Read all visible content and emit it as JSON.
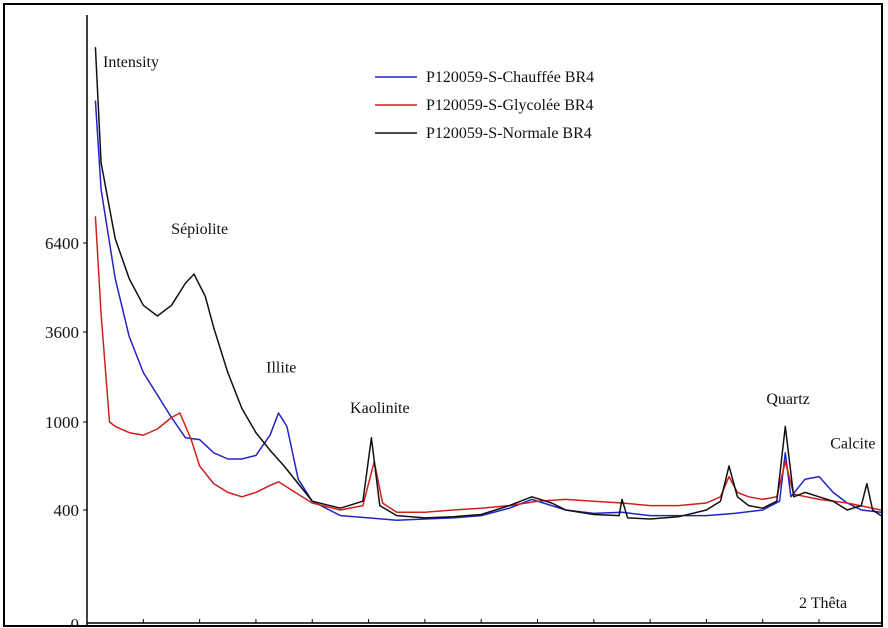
{
  "chart_data": {
    "type": "line",
    "title": "",
    "ylabel": "Intensity",
    "xlabel": "2 Thêta",
    "xlim": [
      2.0,
      30.2
    ],
    "y_tick_labels": [
      "0",
      "400",
      "1000",
      "3600",
      "6400"
    ],
    "x_tick_values": [
      4,
      6,
      8,
      10,
      12,
      14,
      16,
      18,
      20,
      22,
      24,
      26,
      28
    ],
    "grid": false,
    "legend_position": "top-center",
    "annotations": [
      {
        "text": "Sépiolite",
        "x": 6.0,
        "level": 4.1
      },
      {
        "text": "Illite",
        "x": 8.9,
        "level": 2.55
      },
      {
        "text": "Kaolinite",
        "x": 12.4,
        "level": 2.1
      },
      {
        "text": "Quartz",
        "x": 26.9,
        "level": 2.2
      },
      {
        "text": "Calcite",
        "x": 29.2,
        "level": 1.7
      }
    ],
    "series": [
      {
        "name": "P120059-S-Chauffée BR4",
        "color": "#2323c8",
        "points": [
          [
            2.3,
            5.6
          ],
          [
            2.5,
            4.6
          ],
          [
            3,
            3.6
          ],
          [
            3.5,
            2.95
          ],
          [
            4,
            2.55
          ],
          [
            4.5,
            2.3
          ],
          [
            5,
            2.05
          ],
          [
            5.5,
            1.82
          ],
          [
            6,
            1.8
          ],
          [
            6.5,
            1.65
          ],
          [
            7,
            1.58
          ],
          [
            7.5,
            1.58
          ],
          [
            8,
            1.62
          ],
          [
            8.5,
            1.85
          ],
          [
            8.8,
            2.1
          ],
          [
            9.1,
            1.95
          ],
          [
            9.5,
            1.35
          ],
          [
            10,
            1.1
          ],
          [
            11,
            0.95
          ],
          [
            12,
            0.93
          ],
          [
            13,
            0.91
          ],
          [
            14,
            0.92
          ],
          [
            15,
            0.93
          ],
          [
            16,
            0.95
          ],
          [
            17,
            1.02
          ],
          [
            17.8,
            1.12
          ],
          [
            18.5,
            1.05
          ],
          [
            19,
            1.0
          ],
          [
            20,
            0.97
          ],
          [
            21,
            0.98
          ],
          [
            22,
            0.95
          ],
          [
            24,
            0.95
          ],
          [
            25,
            0.97
          ],
          [
            26,
            1.0
          ],
          [
            26.6,
            1.1
          ],
          [
            26.8,
            1.65
          ],
          [
            27.0,
            1.15
          ],
          [
            27.5,
            1.35
          ],
          [
            28,
            1.38
          ],
          [
            28.5,
            1.2
          ],
          [
            29,
            1.08
          ],
          [
            29.5,
            1.0
          ],
          [
            30.2,
            0.98
          ]
        ]
      },
      {
        "name": "P120059-S-Glycolée BR4",
        "color": "#d11f1f",
        "points": [
          [
            2.3,
            4.3
          ],
          [
            2.5,
            3.2
          ],
          [
            2.8,
            2.0
          ],
          [
            3,
            1.95
          ],
          [
            3.5,
            1.88
          ],
          [
            4,
            1.85
          ],
          [
            4.5,
            1.92
          ],
          [
            5,
            2.05
          ],
          [
            5.3,
            2.1
          ],
          [
            5.7,
            1.8
          ],
          [
            6,
            1.5
          ],
          [
            6.5,
            1.3
          ],
          [
            7,
            1.2
          ],
          [
            7.5,
            1.15
          ],
          [
            8,
            1.2
          ],
          [
            8.5,
            1.28
          ],
          [
            8.8,
            1.32
          ],
          [
            9.5,
            1.18
          ],
          [
            10,
            1.08
          ],
          [
            11,
            1.0
          ],
          [
            11.8,
            1.05
          ],
          [
            12.2,
            1.55
          ],
          [
            12.5,
            1.08
          ],
          [
            13,
            0.98
          ],
          [
            14,
            0.98
          ],
          [
            15,
            1.0
          ],
          [
            16,
            1.02
          ],
          [
            17,
            1.05
          ],
          [
            18,
            1.1
          ],
          [
            19,
            1.12
          ],
          [
            20,
            1.1
          ],
          [
            21,
            1.08
          ],
          [
            22,
            1.05
          ],
          [
            23,
            1.05
          ],
          [
            24,
            1.08
          ],
          [
            24.5,
            1.15
          ],
          [
            24.8,
            1.38
          ],
          [
            25.1,
            1.2
          ],
          [
            25.5,
            1.15
          ],
          [
            26,
            1.12
          ],
          [
            26.5,
            1.15
          ],
          [
            26.8,
            1.55
          ],
          [
            27.1,
            1.18
          ],
          [
            28,
            1.12
          ],
          [
            29,
            1.08
          ],
          [
            30.2,
            1.0
          ]
        ]
      },
      {
        "name": "P120059-S-Normale BR4",
        "color": "#111111",
        "points": [
          [
            2.3,
            6.2
          ],
          [
            2.5,
            4.9
          ],
          [
            3,
            4.05
          ],
          [
            3.5,
            3.6
          ],
          [
            4,
            3.3
          ],
          [
            4.5,
            3.18
          ],
          [
            5,
            3.3
          ],
          [
            5.5,
            3.55
          ],
          [
            5.8,
            3.65
          ],
          [
            6.2,
            3.4
          ],
          [
            6.5,
            3.05
          ],
          [
            7,
            2.55
          ],
          [
            7.5,
            2.15
          ],
          [
            8,
            1.88
          ],
          [
            8.5,
            1.68
          ],
          [
            9,
            1.5
          ],
          [
            9.5,
            1.3
          ],
          [
            10,
            1.1
          ],
          [
            11,
            1.02
          ],
          [
            11.8,
            1.1
          ],
          [
            12.1,
            1.82
          ],
          [
            12.4,
            1.05
          ],
          [
            13,
            0.95
          ],
          [
            14,
            0.93
          ],
          [
            15,
            0.94
          ],
          [
            16,
            0.96
          ],
          [
            17,
            1.05
          ],
          [
            17.8,
            1.15
          ],
          [
            18.5,
            1.08
          ],
          [
            19,
            1.0
          ],
          [
            20,
            0.96
          ],
          [
            20.9,
            0.95
          ],
          [
            21.0,
            1.12
          ],
          [
            21.2,
            0.93
          ],
          [
            22,
            0.92
          ],
          [
            23,
            0.94
          ],
          [
            24,
            1.0
          ],
          [
            24.5,
            1.1
          ],
          [
            24.8,
            1.5
          ],
          [
            25.1,
            1.15
          ],
          [
            25.5,
            1.05
          ],
          [
            26,
            1.02
          ],
          [
            26.5,
            1.1
          ],
          [
            26.8,
            1.95
          ],
          [
            27.1,
            1.15
          ],
          [
            27.5,
            1.2
          ],
          [
            28,
            1.15
          ],
          [
            28.5,
            1.1
          ],
          [
            29,
            1.0
          ],
          [
            29.5,
            1.05
          ],
          [
            29.7,
            1.3
          ],
          [
            29.9,
            1.0
          ],
          [
            30.2,
            0.95
          ]
        ]
      }
    ]
  }
}
